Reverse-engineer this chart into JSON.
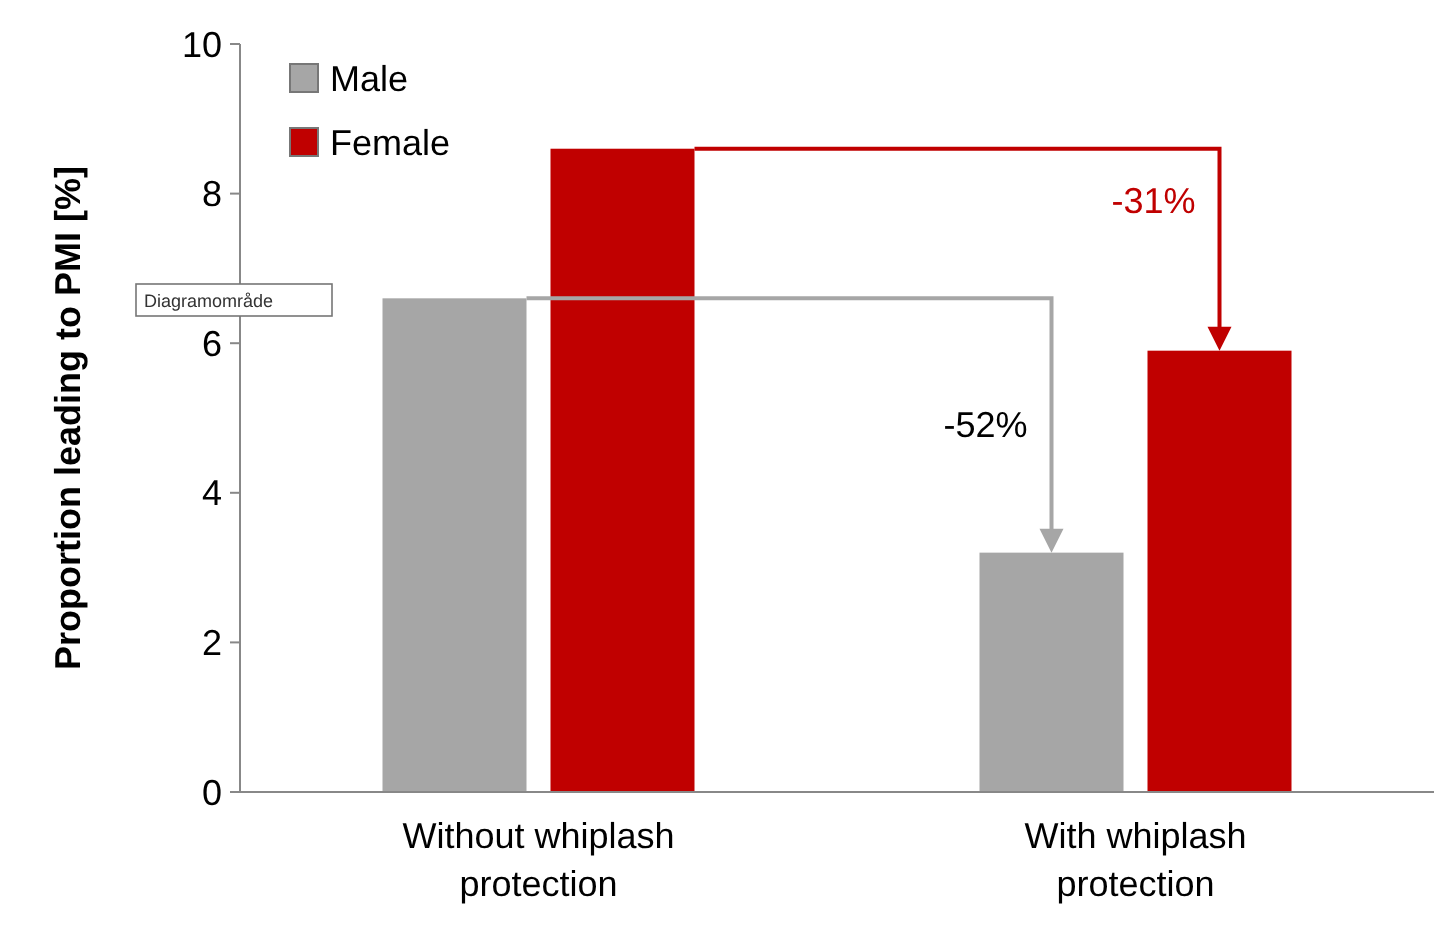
{
  "chart_data": {
    "type": "bar",
    "ylabel": "Proportion leading to PMI [%]",
    "categories": [
      "Without whiplash protection",
      "With whiplash protection"
    ],
    "series": [
      {
        "name": "Male",
        "color": "#a6a6a6",
        "values": [
          6.6,
          3.2
        ]
      },
      {
        "name": "Female",
        "color": "#c00000",
        "values": [
          8.6,
          5.9
        ]
      }
    ],
    "ylim": [
      0,
      10
    ],
    "yticks": [
      0,
      2,
      4,
      6,
      8,
      10
    ],
    "grid": false,
    "legend": "top left",
    "annotations": [
      "Diagramområde",
      "-52%",
      "-31%"
    ]
  }
}
